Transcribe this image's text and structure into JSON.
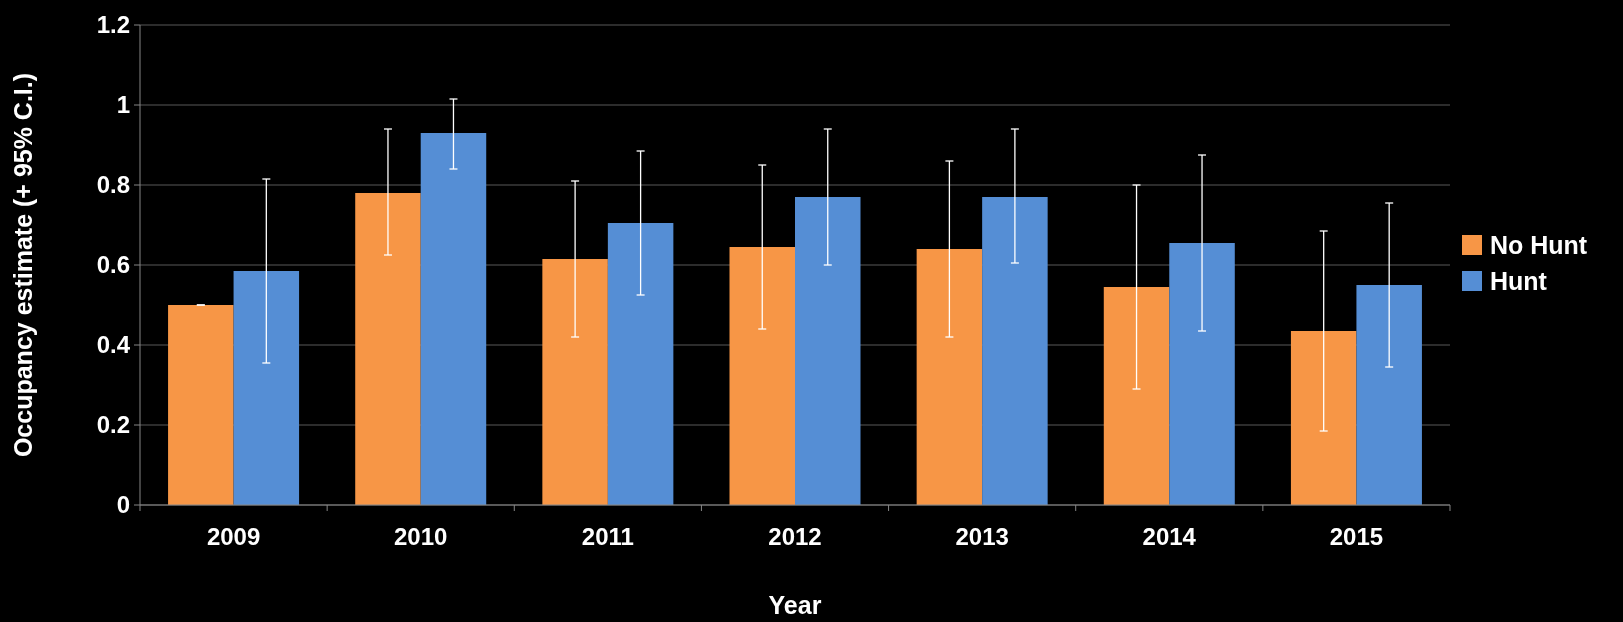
{
  "chart_data": {
    "type": "bar",
    "xlabel": "Year",
    "ylabel": "Occupancy estimate (+ 95% C.I.)",
    "categories": [
      "2009",
      "2010",
      "2011",
      "2012",
      "2013",
      "2014",
      "2015"
    ],
    "series": [
      {
        "name": "No Hunt",
        "color": "#f79646",
        "values": [
          0.5,
          0.78,
          0.615,
          0.645,
          0.64,
          0.545,
          0.435
        ],
        "errors": [
          [
            0.5,
            0.5
          ],
          [
            0.625,
            0.94
          ],
          [
            0.42,
            0.81
          ],
          [
            0.44,
            0.85
          ],
          [
            0.42,
            0.86
          ],
          [
            0.29,
            0.8
          ],
          [
            0.185,
            0.685
          ]
        ]
      },
      {
        "name": "Hunt",
        "color": "#558ed5",
        "values": [
          0.585,
          0.93,
          0.705,
          0.77,
          0.77,
          0.655,
          0.55
        ],
        "errors": [
          [
            0.355,
            0.815
          ],
          [
            0.84,
            1.015
          ],
          [
            0.525,
            0.885
          ],
          [
            0.6,
            0.94
          ],
          [
            0.605,
            0.94
          ],
          [
            0.435,
            0.875
          ],
          [
            0.345,
            0.755
          ]
        ]
      }
    ],
    "ylim": [
      0,
      1.2
    ],
    "yticks": [
      0,
      0.2,
      0.4,
      0.6,
      0.8,
      1,
      1.2
    ],
    "grid": "y",
    "legend": "right"
  }
}
